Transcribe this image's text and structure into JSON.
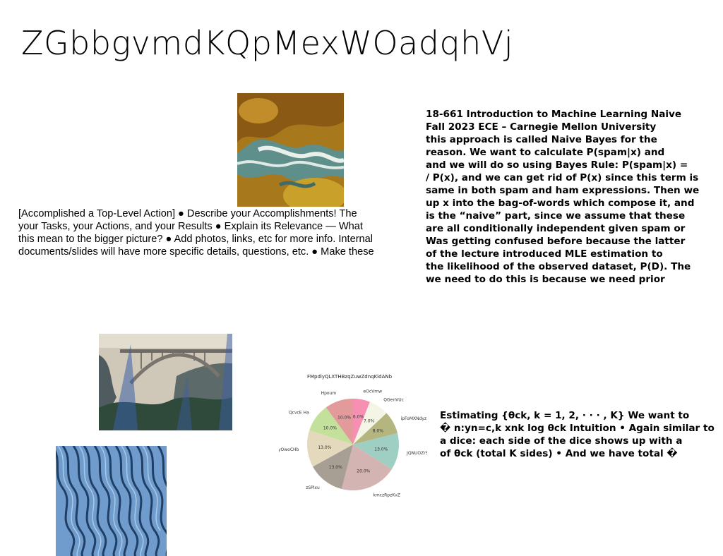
{
  "slide": {
    "title": "ZGbbgvmdKQpMexWOadqhVj"
  },
  "left_text": {
    "lines": [
      "[Accomplished a Top-Level Action] ● Describe your Accomplishments! The",
      "your Tasks, your Actions, and your Results ● Explain its Relevance — What",
      "this mean to the bigger picture? ● Add photos, links, etc for more info. Internal",
      "documents/slides will have more specific details, questions, etc. ● Make these"
    ]
  },
  "right_text": {
    "lines": [
      "18-661 Introduction to Machine Learning Naive",
      "Fall 2023 ECE – Carnegie Mellon University",
      "this approach is called Naive Bayes for the",
      "reason. We want to calculate P(spam|x) and",
      "and we will do so using Bayes Rule: P(spam|x) =",
      "/ P(x), and we can get rid of P(x) since this term is",
      "same in both spam and ham expressions. Then we",
      "up x into the bag-of-words which compose it, and",
      "is the “naive” part, since we assume that these",
      "are all conditionally independent given spam or",
      "Was getting confused before because the latter",
      "of the lecture introduced MLE estimation to",
      "the likelihood of the observed dataset, P(D). The",
      "we need to do this is because we need prior"
    ]
  },
  "bottom_text": {
    "lines": [
      "Estimating {θck, k = 1, 2, · · · , K} We want to",
      "� n:yn=c,k xnk log θck Intuition • Again similar to",
      "a dice: each side of the dice shows up with a",
      "of θck (total K sides) • And we have total �"
    ]
  },
  "images": {
    "top": "aerial-landscape-photo",
    "bridge": "coastal-bridge-photo",
    "waves": "blue-sand-ripples-photo"
  },
  "chart_data": {
    "type": "pie",
    "title": "FMpdlyQLXTHBzqZuwZdnqKldANb",
    "slices": [
      {
        "label": "eOcVmw",
        "value": 6.0,
        "display": "6.0%",
        "color": "#f78fb3"
      },
      {
        "label": "QGenVUc",
        "value": 7.0,
        "display": "7.0%",
        "color": "#f5f5e6"
      },
      {
        "label": "ipFoMXNdyz",
        "value": 8.0,
        "display": "8.0%",
        "color": "#b5b57f"
      },
      {
        "label": "JQNUOZrSA",
        "value": 13.0,
        "display": "13.0%",
        "color": "#9fcfc2"
      },
      {
        "label": "kmczRpzKvZ",
        "value": 20.0,
        "display": "20.0%",
        "color": "#d4b4b2"
      },
      {
        "label": "zSPlxu",
        "value": 13.0,
        "display": "13.0%",
        "color": "#a89f94"
      },
      {
        "label": "yOwoCHb",
        "value": 13.0,
        "display": "13.0%",
        "color": "#e4d9bd"
      },
      {
        "label": "QcvcE Ha",
        "value": 10.0,
        "display": "10.0%",
        "color": "#c4e19c"
      },
      {
        "label": "Hpoum",
        "value": 10.0,
        "display": "10.0%",
        "color": "#e29a9a"
      }
    ]
  }
}
